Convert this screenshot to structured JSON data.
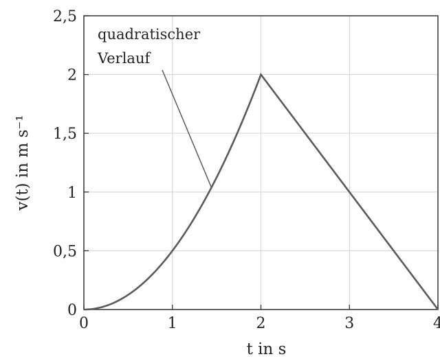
{
  "chart_data": {
    "type": "line",
    "title": "",
    "xlabel": "t in s",
    "ylabel": "v(t) in m s⁻¹",
    "xlim": [
      0,
      4
    ],
    "ylim": [
      0,
      2.5
    ],
    "grid": true,
    "x_ticks": [
      0,
      1,
      2,
      3,
      4
    ],
    "x_tick_labels": [
      "0",
      "1",
      "2",
      "3",
      "4"
    ],
    "y_ticks": [
      0,
      0.5,
      1,
      1.5,
      2,
      2.5
    ],
    "y_tick_labels": [
      "0",
      "0,5",
      "1",
      "1,5",
      "2",
      "2,5"
    ],
    "series": [
      {
        "segments": [
          {
            "kind": "quadratic",
            "x_range": [
              0,
              2
            ],
            "formula": "v = 0.5 * t^2"
          },
          {
            "kind": "linear",
            "points": [
              [
                2,
                2
              ],
              [
                4,
                0
              ]
            ]
          }
        ]
      }
    ],
    "annotations": [
      {
        "lines": [
          "quadratischer",
          "Verlauf"
        ],
        "arrow_to": [
          1.44,
          1.04
        ]
      }
    ],
    "colors": {
      "curve": "#5a5a5a",
      "grid": "#d9d9d9",
      "axes": "#333333"
    }
  }
}
